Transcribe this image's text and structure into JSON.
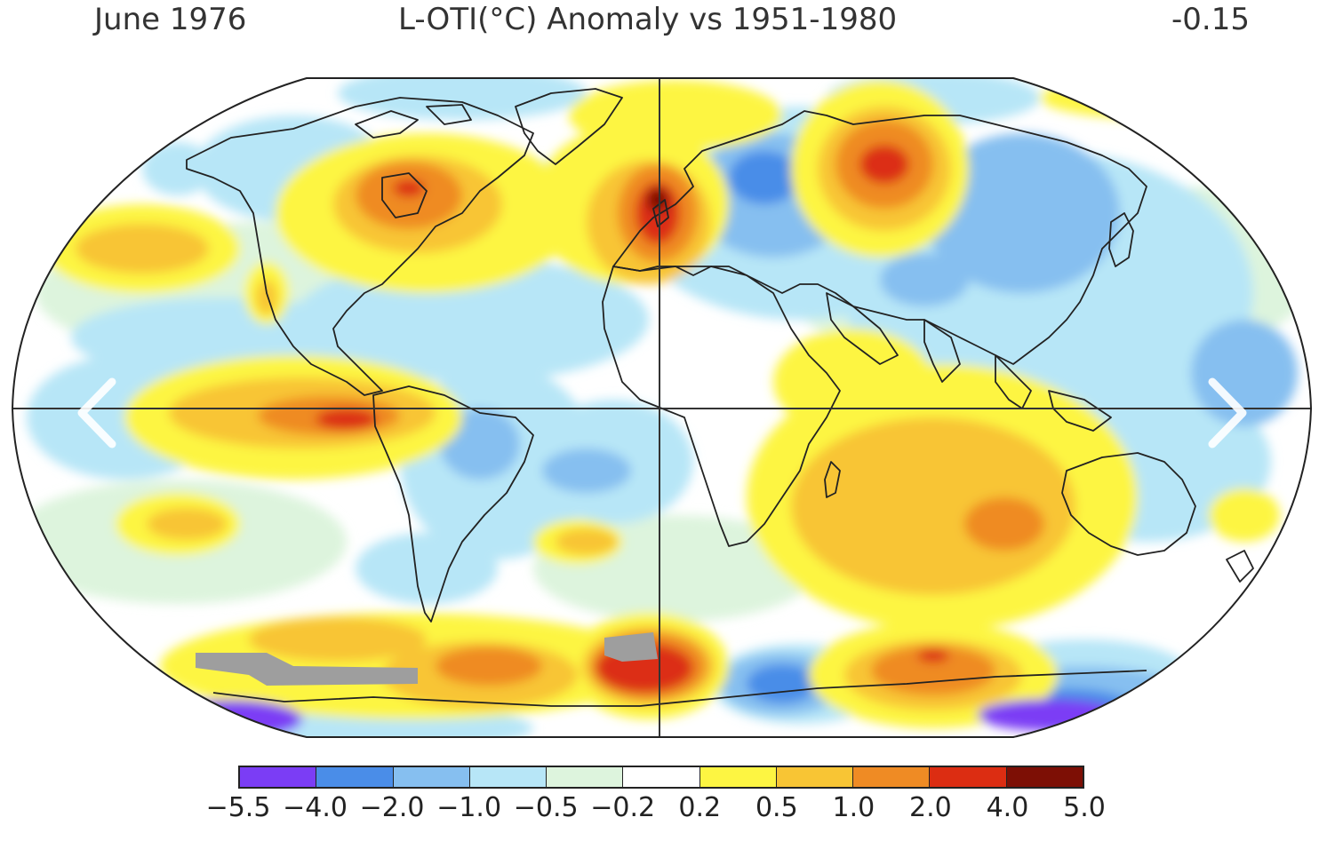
{
  "header": {
    "date": "June 1976",
    "title": "L-OTI(°C) Anomaly vs 1951-1980",
    "global_mean": "-0.15"
  },
  "map": {
    "projection": "robinson",
    "features": [
      "temperature-anomaly-contours",
      "coastlines",
      "equator-line",
      "prime-meridian-line"
    ],
    "missing_data_color": "#9e9e9e"
  },
  "navigation": {
    "prev_icon": "chevron-left-icon",
    "next_icon": "chevron-right-icon"
  },
  "colorbar": {
    "swatches": [
      "#7b3df5",
      "#4a8de8",
      "#86bff0",
      "#b7e6f7",
      "#ddf4dd",
      "#ffffff",
      "#fdf542",
      "#f8c534",
      "#ef8b24",
      "#dc2d12",
      "#7d0f05"
    ],
    "ticks": [
      "−5.5",
      "−4.0",
      "−2.0",
      "−1.0",
      "−0.5",
      "−0.2",
      "0.2",
      "0.5",
      "1.0",
      "2.0",
      "4.0",
      "5.0"
    ]
  }
}
